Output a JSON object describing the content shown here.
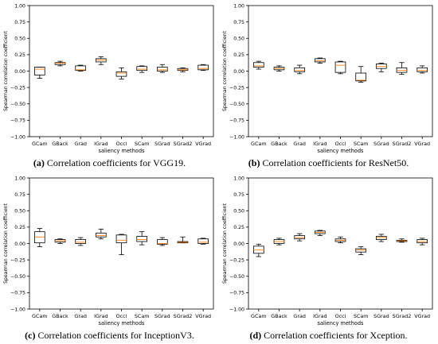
{
  "chart_data": [
    {
      "type": "box",
      "caption_tag": "(a)",
      "caption_text": "Correlation coefficients for VGG19.",
      "xlabel": "saliency methods",
      "ylabel": "Spearman correlation coefficient",
      "ylim": [
        -1.0,
        1.0
      ],
      "yticks": [
        "1.00",
        "0.75",
        "0.50",
        "0.25",
        "0.00",
        "−0.25",
        "−0.50",
        "−0.75",
        "−1.00"
      ],
      "categories": [
        "GCam",
        "GBack",
        "Grad",
        "IGrad",
        "Occl",
        "SCam",
        "SGrad",
        "SGrad2",
        "VGrad"
      ],
      "boxes": [
        {
          "wlo": -0.11,
          "q1": -0.06,
          "med": 0.03,
          "q3": 0.06,
          "whi": 0.06
        },
        {
          "wlo": 0.08,
          "q1": 0.1,
          "med": 0.12,
          "q3": 0.13,
          "whi": 0.15
        },
        {
          "wlo": 0.0,
          "q1": 0.01,
          "med": 0.02,
          "q3": 0.08,
          "whi": 0.09
        },
        {
          "wlo": 0.1,
          "q1": 0.14,
          "med": 0.17,
          "q3": 0.19,
          "whi": 0.22
        },
        {
          "wlo": -0.12,
          "q1": -0.08,
          "med": -0.03,
          "q3": -0.01,
          "whi": 0.05
        },
        {
          "wlo": -0.02,
          "q1": 0.01,
          "med": 0.03,
          "q3": 0.07,
          "whi": 0.08
        },
        {
          "wlo": -0.02,
          "q1": 0.0,
          "med": 0.02,
          "q3": 0.06,
          "whi": 0.1
        },
        {
          "wlo": -0.01,
          "q1": 0.01,
          "med": 0.02,
          "q3": 0.04,
          "whi": 0.05
        },
        {
          "wlo": 0.01,
          "q1": 0.02,
          "med": 0.04,
          "q3": 0.09,
          "whi": 0.1
        }
      ]
    },
    {
      "type": "box",
      "caption_tag": "(b)",
      "caption_text": "Correlation coefficients for ResNet50.",
      "xlabel": "saliency methods",
      "ylabel": "Spearman correlation coefficient",
      "ylim": [
        -1.0,
        1.0
      ],
      "yticks": [
        "1.00",
        "0.75",
        "0.50",
        "0.25",
        "0.00",
        "−0.25",
        "−0.50",
        "−0.75",
        "−1.00"
      ],
      "categories": [
        "GCam",
        "GBack",
        "Grad",
        "IGrad",
        "Occl",
        "SCam",
        "SGrad",
        "SGrad2",
        "VGrad"
      ],
      "boxes": [
        {
          "wlo": 0.03,
          "q1": 0.06,
          "med": 0.08,
          "q3": 0.13,
          "whi": 0.15
        },
        {
          "wlo": 0.0,
          "q1": 0.02,
          "med": 0.04,
          "q3": 0.06,
          "whi": 0.08
        },
        {
          "wlo": -0.04,
          "q1": -0.01,
          "med": 0.01,
          "q3": 0.05,
          "whi": 0.09
        },
        {
          "wlo": 0.12,
          "q1": 0.14,
          "med": 0.16,
          "q3": 0.19,
          "whi": 0.2
        },
        {
          "wlo": -0.04,
          "q1": -0.02,
          "med": 0.09,
          "q3": 0.14,
          "whi": 0.15
        },
        {
          "wlo": -0.17,
          "q1": -0.15,
          "med": -0.14,
          "q3": -0.03,
          "whi": 0.07
        },
        {
          "wlo": -0.01,
          "q1": 0.04,
          "med": 0.07,
          "q3": 0.11,
          "whi": 0.12
        },
        {
          "wlo": -0.05,
          "q1": -0.02,
          "med": 0.01,
          "q3": 0.05,
          "whi": 0.13
        },
        {
          "wlo": -0.03,
          "q1": -0.01,
          "med": 0.01,
          "q3": 0.05,
          "whi": 0.08
        }
      ]
    },
    {
      "type": "box",
      "caption_tag": "(c)",
      "caption_text": "Correlation coefficients for InceptionV3.",
      "xlabel": "saliency methods",
      "ylabel": "Spearman correlation coefficient",
      "ylim": [
        -1.0,
        1.0
      ],
      "yticks": [
        "1.00",
        "0.75",
        "0.50",
        "0.25",
        "0.00",
        "−0.25",
        "−0.50",
        "−0.75",
        "−1.00"
      ],
      "categories": [
        "GCam",
        "GBack",
        "Grad",
        "IGrad",
        "Occl",
        "SCam",
        "SGrad",
        "SGrad2",
        "VGrad"
      ],
      "boxes": [
        {
          "wlo": -0.05,
          "q1": 0.01,
          "med": 0.1,
          "q3": 0.18,
          "whi": 0.23
        },
        {
          "wlo": 0.0,
          "q1": 0.02,
          "med": 0.04,
          "q3": 0.06,
          "whi": 0.07
        },
        {
          "wlo": -0.03,
          "q1": 0.0,
          "med": 0.02,
          "q3": 0.06,
          "whi": 0.09
        },
        {
          "wlo": 0.07,
          "q1": 0.1,
          "med": 0.12,
          "q3": 0.16,
          "whi": 0.22
        },
        {
          "wlo": -0.17,
          "q1": 0.01,
          "med": 0.05,
          "q3": 0.13,
          "whi": 0.14
        },
        {
          "wlo": -0.02,
          "q1": 0.03,
          "med": 0.06,
          "q3": 0.11,
          "whi": 0.18
        },
        {
          "wlo": -0.03,
          "q1": -0.01,
          "med": 0.0,
          "q3": 0.06,
          "whi": 0.09
        },
        {
          "wlo": 0.01,
          "q1": 0.01,
          "med": 0.02,
          "q3": 0.03,
          "whi": 0.1
        },
        {
          "wlo": -0.01,
          "q1": 0.0,
          "med": 0.02,
          "q3": 0.07,
          "whi": 0.08
        }
      ]
    },
    {
      "type": "box",
      "caption_tag": "(d)",
      "caption_text": "Correlation coefficients for Xception.",
      "xlabel": "saliency methods",
      "ylabel": "Spearman correlation coefficient",
      "ylim": [
        -1.0,
        1.0
      ],
      "yticks": [
        "1.00",
        "0.75",
        "0.50",
        "0.25",
        "0.00",
        "−0.25",
        "−0.50",
        "−0.75",
        "−1.00"
      ],
      "categories": [
        "GCam",
        "GBack",
        "Grad",
        "IGrad",
        "Occl",
        "SCam",
        "SGrad",
        "SGrad2",
        "VGrad"
      ],
      "boxes": [
        {
          "wlo": -0.2,
          "q1": -0.15,
          "med": -0.1,
          "q3": -0.04,
          "whi": -0.01
        },
        {
          "wlo": -0.02,
          "q1": 0.0,
          "med": 0.03,
          "q3": 0.06,
          "whi": 0.08
        },
        {
          "wlo": 0.04,
          "q1": 0.07,
          "med": 0.09,
          "q3": 0.12,
          "whi": 0.15
        },
        {
          "wlo": 0.12,
          "q1": 0.15,
          "med": 0.17,
          "q3": 0.19,
          "whi": 0.2
        },
        {
          "wlo": 0.01,
          "q1": 0.03,
          "med": 0.05,
          "q3": 0.07,
          "whi": 0.1
        },
        {
          "wlo": -0.17,
          "q1": -0.13,
          "med": -0.1,
          "q3": -0.08,
          "whi": -0.05
        },
        {
          "wlo": 0.03,
          "q1": 0.06,
          "med": 0.09,
          "q3": 0.11,
          "whi": 0.14
        },
        {
          "wlo": 0.02,
          "q1": 0.03,
          "med": 0.04,
          "q3": 0.05,
          "whi": 0.07
        },
        {
          "wlo": -0.02,
          "q1": 0.01,
          "med": 0.03,
          "q3": 0.06,
          "whi": 0.08
        }
      ]
    }
  ],
  "colors": {
    "box": "#000000",
    "median": "#ff7f0e",
    "axis": "#000000"
  }
}
